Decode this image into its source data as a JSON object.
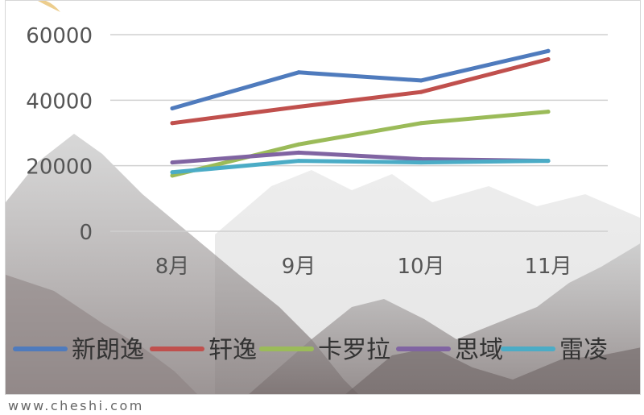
{
  "chart_data": {
    "type": "line",
    "categories": [
      "8月",
      "9月",
      "10月",
      "11月"
    ],
    "y_ticks": [
      "0",
      "20000",
      "40000",
      "60000"
    ],
    "ylim": [
      0,
      60000
    ],
    "grid": true,
    "legend_position": "bottom",
    "series": [
      {
        "name": "新朗逸",
        "color": "#4f7bbd",
        "values": [
          37500,
          48500,
          46000,
          55000
        ]
      },
      {
        "name": "轩逸",
        "color": "#c0504d",
        "values": [
          33000,
          38000,
          42500,
          52500
        ]
      },
      {
        "name": "卡罗拉",
        "color": "#9bbb59",
        "values": [
          17000,
          26500,
          33000,
          36500
        ]
      },
      {
        "name": "思域",
        "color": "#8064a2",
        "values": [
          21000,
          24000,
          22000,
          21500
        ]
      },
      {
        "name": "雷凌",
        "color": "#4bacc6",
        "values": [
          18000,
          21500,
          21000,
          21500
        ]
      }
    ]
  },
  "watermark": "www.cheshi.com"
}
